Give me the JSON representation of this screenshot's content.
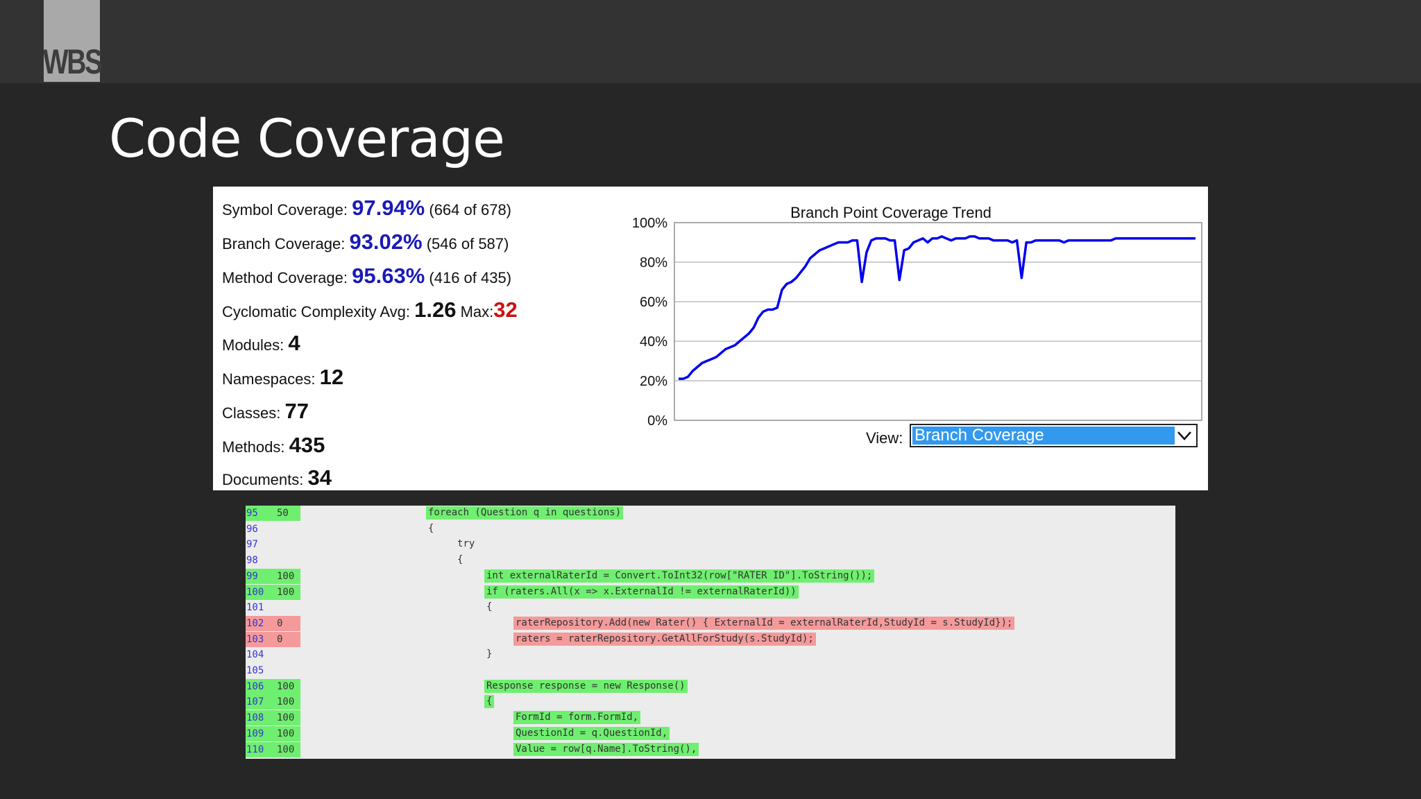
{
  "logo": {
    "text": "WBS"
  },
  "slide": {
    "title": "Code Coverage"
  },
  "summary": {
    "symbol": {
      "label": "Symbol Coverage:",
      "value": "97.94%",
      "detail": "(664 of 678)"
    },
    "branch": {
      "label": "Branch Coverage:",
      "value": "93.02%",
      "detail": "(546 of 587)"
    },
    "method": {
      "label": "Method Coverage:",
      "value": "95.63%",
      "detail": "(416 of 435)"
    },
    "cyclomatic": {
      "label": "Cyclomatic Complexity Avg:",
      "avg": "1.26",
      "max_label": "Max:",
      "max": "32"
    },
    "modules": {
      "label": "Modules:",
      "value": "4"
    },
    "namespaces": {
      "label": "Namespaces:",
      "value": "12"
    },
    "classes": {
      "label": "Classes:",
      "value": "77"
    },
    "methods": {
      "label": "Methods:",
      "value": "435"
    },
    "documents": {
      "label": "Documents:",
      "value": "34"
    }
  },
  "view": {
    "label": "View:",
    "selected": "Branch Coverage",
    "icon": "chevron-down-icon"
  },
  "colors": {
    "percent_blue": "#1a1ab8",
    "max_red": "#cc1111",
    "trend_line": "#0000ee",
    "covered_green": "#6fef6f",
    "uncovered_red": "#f49a9a",
    "select_blue": "#3399ee"
  },
  "chart_data": {
    "type": "line",
    "title": "Branch Point Coverage Trend",
    "y_tick_labels": [
      "100%",
      "80%",
      "60%",
      "40%",
      "20%",
      "0%"
    ],
    "ylim": [
      0,
      100
    ],
    "grid": true,
    "series": [
      {
        "values": [
          21,
          21,
          22,
          25,
          27,
          29,
          30,
          31,
          32,
          34,
          36,
          37,
          38,
          40,
          42,
          44,
          47,
          52,
          55,
          56,
          56,
          57,
          66,
          69,
          70,
          72,
          75,
          78,
          82,
          84,
          86,
          87,
          88,
          89,
          90,
          90,
          90,
          91,
          91,
          70,
          85,
          91,
          92,
          92,
          92,
          91,
          91,
          71,
          86,
          87,
          90,
          91,
          92,
          90,
          92,
          92,
          93,
          92,
          91,
          92,
          92,
          92,
          93,
          93,
          92,
          92,
          92,
          91,
          91,
          91,
          91,
          90,
          91,
          72,
          90,
          90,
          91,
          91,
          91,
          91,
          91,
          91,
          90,
          91,
          91,
          91,
          91,
          91,
          91,
          91,
          91,
          91,
          91,
          92,
          92,
          92,
          92,
          92,
          92,
          92,
          92,
          92,
          92,
          92,
          92,
          92,
          92,
          92,
          92,
          92,
          92
        ]
      }
    ]
  },
  "code": {
    "lines": [
      {
        "num": "95",
        "hits": "50",
        "text": "foreach (Question q in questions)",
        "status": "covered",
        "indent": 1
      },
      {
        "num": "96",
        "hits": "",
        "text": "{",
        "status": "none",
        "indent": 1
      },
      {
        "num": "97",
        "hits": "",
        "text": "try",
        "status": "none",
        "indent": 2
      },
      {
        "num": "98",
        "hits": "",
        "text": "{",
        "status": "none",
        "indent": 2
      },
      {
        "num": "99",
        "hits": "100",
        "text": "int externalRaterId = Convert.ToInt32(row[\"RATER ID\"].ToString());",
        "status": "covered",
        "indent": 3
      },
      {
        "num": "100",
        "hits": "100",
        "text": "if (raters.All(x => x.ExternalId != externalRaterId))",
        "status": "covered",
        "indent": 3
      },
      {
        "num": "101",
        "hits": "",
        "text": "{",
        "status": "none",
        "indent": 3
      },
      {
        "num": "102",
        "hits": "0",
        "text": "raterRepository.Add(new Rater() { ExternalId = externalRaterId,StudyId = s.StudyId});",
        "status": "uncovered",
        "indent": 4
      },
      {
        "num": "103",
        "hits": "0",
        "text": "raters = raterRepository.GetAllForStudy(s.StudyId);",
        "status": "uncovered",
        "indent": 4
      },
      {
        "num": "104",
        "hits": "",
        "text": "}",
        "status": "none",
        "indent": 3
      },
      {
        "num": "105",
        "hits": "",
        "text": "",
        "status": "none",
        "indent": 3
      },
      {
        "num": "106",
        "hits": "100",
        "text": "Response response = new Response()",
        "status": "covered",
        "indent": 3
      },
      {
        "num": "107",
        "hits": "100",
        "text": "{",
        "status": "covered",
        "indent": 3
      },
      {
        "num": "108",
        "hits": "100",
        "text": "FormId = form.FormId,",
        "status": "covered",
        "indent": 4
      },
      {
        "num": "109",
        "hits": "100",
        "text": "QuestionId = q.QuestionId,",
        "status": "covered",
        "indent": 4
      },
      {
        "num": "110",
        "hits": "100",
        "text": "Value = row[q.Name].ToString(),",
        "status": "covered",
        "indent": 4
      }
    ]
  }
}
